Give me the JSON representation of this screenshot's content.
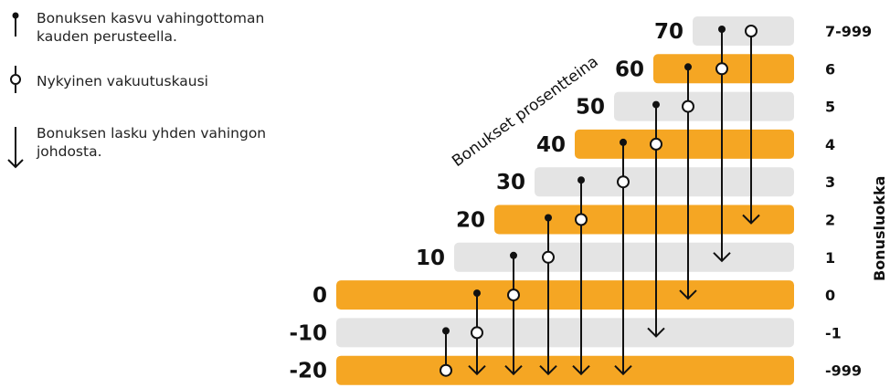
{
  "legend": {
    "increase_label": "Bonuksen kasvu vahingottoman\nkauden perusteella.",
    "current_label": "Nykyinen vakuutuskausi",
    "decrease_label": "Bonuksen lasku yhden vahingon\njohdosta."
  },
  "axis_labels": {
    "percentages": "Bonukset prosentteina",
    "classes": "Bonusluokka"
  },
  "colors": {
    "orange": "#F5A623",
    "gray": "#E4E4E4",
    "line": "#111111"
  },
  "rows": [
    {
      "percent": "70",
      "class": "7-999",
      "color": "gray"
    },
    {
      "percent": "60",
      "class": "6",
      "color": "orange"
    },
    {
      "percent": "50",
      "class": "5",
      "color": "gray"
    },
    {
      "percent": "40",
      "class": "4",
      "color": "orange"
    },
    {
      "percent": "30",
      "class": "3",
      "color": "gray"
    },
    {
      "percent": "20",
      "class": "2",
      "color": "orange"
    },
    {
      "percent": "10",
      "class": "1",
      "color": "gray"
    },
    {
      "percent": "0",
      "class": "0",
      "color": "orange"
    },
    {
      "percent": "-10",
      "class": "-1",
      "color": "gray"
    },
    {
      "percent": "-20",
      "class": "-999",
      "color": "orange"
    }
  ]
}
